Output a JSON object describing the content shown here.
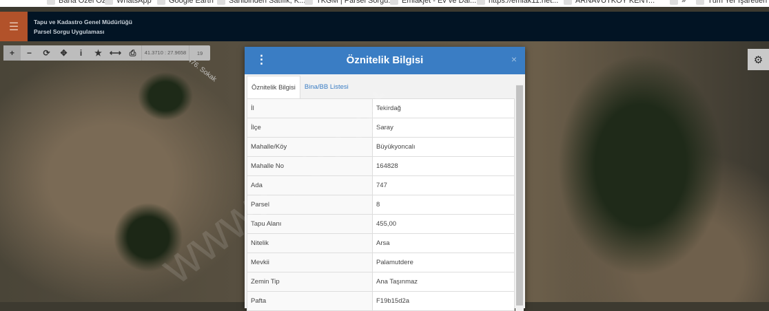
{
  "bookmarks": [
    "Bana Özel Özet",
    "WhatsApp",
    "Google Earth",
    "Sahibinden Satılık, K...",
    "TKGM | Parsel Sorgu...",
    "Emlakjet - Ev ve Dai...",
    "https://emlak11.net...",
    "ARNAVUTKÖY KENT...",
    "»",
    "Tüm Yer İşaretleri"
  ],
  "header": {
    "title1": "Tapu ve Kadastro Genel Müdürlüğü",
    "title2": "Parsel Sorgu Uygulaması",
    "menu_icon": "☰"
  },
  "toolbar": {
    "buttons": [
      "+",
      "−",
      "⟳",
      "✥",
      "i",
      "★",
      "⟷",
      "⎙"
    ],
    "coordinates": "41.3710 : 27.9658",
    "zoom": "19"
  },
  "map": {
    "road_label": "476. Sokak",
    "watermark": "www.i...a.net"
  },
  "modal": {
    "title": "Öznitelik Bilgisi",
    "tabs": [
      {
        "label": "Öznitelik Bilgisi",
        "active": true
      },
      {
        "label": "Bina/BB Listesi",
        "active": false
      }
    ],
    "rows": [
      [
        "İl",
        "Tekirdağ"
      ],
      [
        "İlçe",
        "Saray"
      ],
      [
        "Mahalle/Köy",
        "Büyükyoncalı"
      ],
      [
        "Mahalle No",
        "164828"
      ],
      [
        "Ada",
        "747"
      ],
      [
        "Parsel",
        "8"
      ],
      [
        "Tapu Alanı",
        "455,00"
      ],
      [
        "Nitelik",
        "Arsa"
      ],
      [
        "Mevkii",
        "Palamutdere"
      ],
      [
        "Zemin Tip",
        "Ana Taşınmaz"
      ],
      [
        "Pafta",
        "F19b15d2a"
      ]
    ]
  },
  "colors": {
    "header": "#021424",
    "menu": "#b2522a",
    "modal_header": "#3a7dc4"
  }
}
